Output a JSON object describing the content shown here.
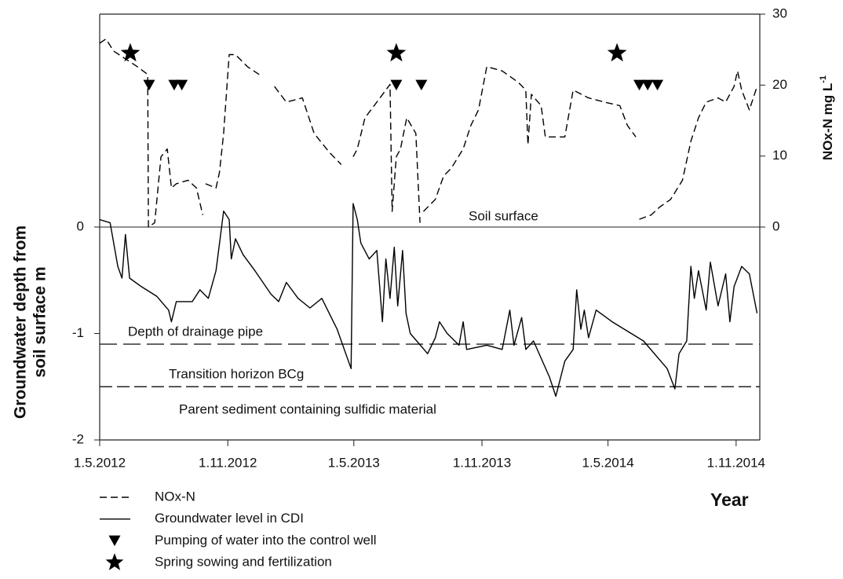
{
  "chart_data": {
    "type": "line",
    "ylabel": [
      "Groundwater depth from",
      "soil surface m"
    ],
    "y2label": {
      "text": "NOx-N mg L",
      "superscript": "-1"
    },
    "xlabel": "Year",
    "xlim": [
      "2012-05-01",
      "2014-12-05"
    ],
    "xticks": [
      {
        "value": "2012-05-01",
        "label": "1.5.2012"
      },
      {
        "value": "2012-11-01",
        "label": "1.11.2012"
      },
      {
        "value": "2013-05-01",
        "label": "1.5.2013"
      },
      {
        "value": "2013-11-01",
        "label": "1.11.2013"
      },
      {
        "value": "2014-05-01",
        "label": "1.5.2014"
      },
      {
        "value": "2014-11-01",
        "label": "1.11.2014"
      }
    ],
    "ylim": [
      -2,
      2
    ],
    "yticks": [
      -2,
      -1,
      0
    ],
    "y2lim": [
      -30,
      30
    ],
    "y2ticks": [
      0,
      10,
      20,
      30
    ],
    "grid": false,
    "reference_lines": [
      {
        "value": 0,
        "style": "solid"
      },
      {
        "value": -1.1,
        "style": "long-dash"
      },
      {
        "value": -1.5,
        "style": "dash"
      }
    ],
    "annotations": [
      "Soil surface",
      "Depth of drainage pipe",
      "Transition horizon BCg",
      "Parent sediment containing sulfidic material"
    ],
    "series": [
      {
        "name": "NOx-N",
        "color": "#000000",
        "line_style": "dashed",
        "axis": "y2",
        "x": [
          "2012-05-01",
          "2012-05-10",
          "2012-05-21",
          "2012-06-07",
          "2012-06-24",
          "2012-07-09",
          "2012-07-10",
          "2012-07-19",
          "2012-07-28",
          "2012-08-06",
          "2012-08-12",
          "2012-08-19",
          "2012-09-05",
          "2012-09-17",
          "2012-09-26",
          "2012-09-28",
          "2012-09-30",
          "2012-10-15",
          "2012-10-20",
          "2012-10-26",
          "2012-11-03",
          "2012-11-12",
          "2012-11-29",
          "2012-12-16",
          "2012-12-27",
          "2013-01-07",
          "2013-01-24",
          "2013-02-16",
          "2013-03-05",
          "2013-03-27",
          "2013-04-13",
          "2013-04-22",
          "2013-04-30",
          "2013-05-06",
          "2013-05-17",
          "2013-06-03",
          "2013-06-22",
          "2013-06-25",
          "2013-07-01",
          "2013-07-07",
          "2013-07-16",
          "2013-07-29",
          "2013-08-04",
          "2013-08-06",
          "2013-08-09",
          "2013-08-26",
          "2013-09-07",
          "2013-09-18",
          "2013-10-05",
          "2013-10-16",
          "2013-10-27",
          "2013-11-08",
          "2013-11-30",
          "2013-12-23",
          "2014-01-03",
          "2014-01-06",
          "2014-01-11",
          "2014-01-25",
          "2014-01-31",
          "2014-02-28",
          "2014-03-12",
          "2014-04-03",
          "2014-04-26",
          "2014-05-18",
          "2014-05-29",
          "2014-06-10",
          "2014-06-12",
          "2014-06-15",
          "2014-07-02",
          "2014-07-14",
          "2014-07-30",
          "2014-08-16",
          "2014-08-28",
          "2014-09-08",
          "2014-09-19",
          "2014-10-06",
          "2014-10-17",
          "2014-10-29",
          "2014-11-03",
          "2014-11-09",
          "2014-11-20",
          "2014-12-01"
        ],
        "values": [
          25.9,
          26.5,
          24.8,
          23.7,
          22.6,
          21.5,
          0,
          0.6,
          9.9,
          11.0,
          5.5,
          6.1,
          6.6,
          5.5,
          1.7,
          null,
          6.1,
          5.5,
          7.7,
          13.2,
          24.3,
          24.3,
          22.6,
          21.5,
          null,
          19.8,
          17.6,
          18.2,
          13.2,
          10.5,
          8.8,
          null,
          9.9,
          11.0,
          15.4,
          17.6,
          20.1,
          2.2,
          9.9,
          11.0,
          15.4,
          13.2,
          0.6,
          null,
          2.2,
          3.9,
          7.2,
          8.3,
          11.0,
          14.3,
          16.5,
          22.6,
          22.0,
          20.4,
          19.3,
          11.6,
          18.7,
          17.1,
          12.7,
          12.7,
          19.3,
          18.2,
          17.6,
          17.1,
          14.3,
          12.7,
          null,
          1.1,
          1.7,
          2.8,
          3.9,
          6.6,
          12.1,
          15.4,
          17.6,
          18.2,
          17.6,
          19.8,
          22.0,
          19.3,
          16.5,
          19.8
        ]
      },
      {
        "name": "Groundwater level in CDI",
        "color": "#000000",
        "line_style": "solid",
        "axis": "y",
        "x": [
          "2012-05-01",
          "2012-05-16",
          "2012-05-27",
          "2012-06-02",
          "2012-06-07",
          "2012-06-13",
          "2012-06-30",
          "2012-07-22",
          "2012-08-08",
          "2012-08-12",
          "2012-08-19",
          "2012-09-11",
          "2012-09-22",
          "2012-10-04",
          "2012-10-15",
          "2012-10-26",
          "2012-11-03",
          "2012-11-06",
          "2012-11-12",
          "2012-11-23",
          "2012-12-10",
          "2013-01-02",
          "2013-01-13",
          "2013-01-24",
          "2013-02-10",
          "2013-02-27",
          "2013-03-16",
          "2013-04-07",
          "2013-04-27",
          "2013-04-30",
          "2013-05-06",
          "2013-05-11",
          "2013-05-23",
          "2013-06-03",
          "2013-06-11",
          "2013-06-16",
          "2013-06-22",
          "2013-06-28",
          "2013-07-03",
          "2013-07-10",
          "2013-07-15",
          "2013-07-21",
          "2013-08-15",
          "2013-08-26",
          "2013-09-01",
          "2013-09-12",
          "2013-09-29",
          "2013-10-05",
          "2013-10-10",
          "2013-11-08",
          "2013-11-30",
          "2013-12-11",
          "2013-12-17",
          "2013-12-28",
          "2014-01-03",
          "2014-01-14",
          "2014-02-06",
          "2014-02-15",
          "2014-02-28",
          "2014-03-12",
          "2014-03-17",
          "2014-03-23",
          "2014-03-28",
          "2014-04-03",
          "2014-04-14",
          "2014-05-07",
          "2014-06-21",
          "2014-07-25",
          "2014-08-05",
          "2014-08-11",
          "2014-08-22",
          "2014-08-28",
          "2014-09-02",
          "2014-09-08",
          "2014-09-19",
          "2014-09-25",
          "2014-10-06",
          "2014-10-17",
          "2014-10-23",
          "2014-10-29",
          "2014-11-09",
          "2014-11-20",
          "2014-12-01"
        ],
        "values": [
          0.07,
          0.04,
          -0.37,
          -0.48,
          -0.07,
          -0.48,
          -0.56,
          -0.65,
          -0.78,
          -0.89,
          -0.7,
          -0.7,
          -0.59,
          -0.67,
          -0.41,
          0.15,
          0.07,
          -0.3,
          -0.11,
          -0.26,
          -0.41,
          -0.63,
          -0.7,
          -0.52,
          -0.67,
          -0.76,
          -0.67,
          -0.96,
          -1.33,
          0.22,
          0.07,
          -0.15,
          -0.3,
          -0.22,
          -0.89,
          -0.3,
          -0.67,
          -0.19,
          -0.74,
          -0.22,
          -0.81,
          -1.0,
          -1.19,
          -1.04,
          -0.89,
          -1.0,
          -1.11,
          -0.89,
          -1.15,
          -1.11,
          -1.15,
          -0.78,
          -1.11,
          -0.85,
          -1.15,
          -1.07,
          -1.41,
          -1.59,
          -1.26,
          -1.15,
          -0.59,
          -0.96,
          -0.78,
          -1.04,
          -0.78,
          -0.89,
          -1.07,
          -1.33,
          -1.52,
          -1.19,
          -1.07,
          -0.37,
          -0.67,
          -0.41,
          -0.78,
          -0.33,
          -0.74,
          -0.44,
          -0.89,
          -0.56,
          -0.37,
          -0.44,
          -0.81
        ]
      },
      {
        "name": "Pumping of water into the control well",
        "color": "#000000",
        "marker": "triangle-down",
        "axis": "y2",
        "x": [
          "2012-07-11",
          "2012-08-16",
          "2012-08-27",
          "2013-07-01",
          "2013-08-06",
          "2014-06-15",
          "2014-06-27",
          "2014-07-11"
        ],
        "values": [
          20,
          20,
          20,
          20,
          20,
          20,
          20,
          20
        ]
      },
      {
        "name": "Spring sowing and fertilization",
        "color": "#000000",
        "marker": "star",
        "axis": "y2",
        "x": [
          "2012-06-14",
          "2013-07-01",
          "2014-05-14"
        ],
        "values": [
          24.5,
          24.5,
          24.5
        ]
      }
    ]
  }
}
